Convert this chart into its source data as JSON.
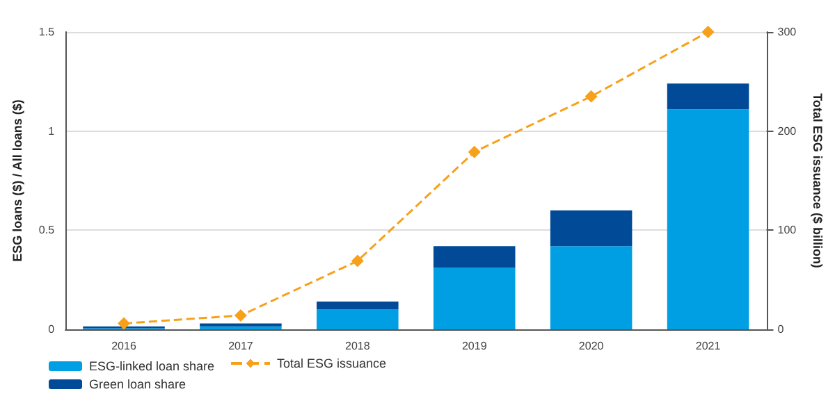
{
  "chart_data": {
    "type": "bar",
    "stacked": true,
    "categories": [
      "2016",
      "2017",
      "2018",
      "2019",
      "2020",
      "2021"
    ],
    "series": [
      {
        "name": "ESG-linked loan share",
        "color": "#009fe3",
        "values": [
          0.005,
          0.015,
          0.1,
          0.31,
          0.42,
          1.11
        ]
      },
      {
        "name": "Green loan share",
        "color": "#004a98",
        "values": [
          0.01,
          0.015,
          0.04,
          0.11,
          0.18,
          0.13
        ]
      },
      {
        "name": "Total ESG issuance",
        "type": "line",
        "axis": "y2",
        "color": "#f7a11a",
        "marker": "diamond",
        "line_style": "dashed",
        "values": [
          6,
          14,
          69,
          179,
          235,
          300
        ]
      }
    ],
    "ylabel": "ESG loans ($) / All loans ($)",
    "y2label": "Total ESG issuance ($ billion)",
    "ylim": [
      0,
      1.5
    ],
    "yticks": [
      0,
      0.5,
      1,
      1.5
    ],
    "y2lim": [
      0,
      300
    ],
    "y2ticks": [
      0,
      100,
      200,
      300
    ],
    "grid": "y",
    "legend": "bottom left"
  }
}
